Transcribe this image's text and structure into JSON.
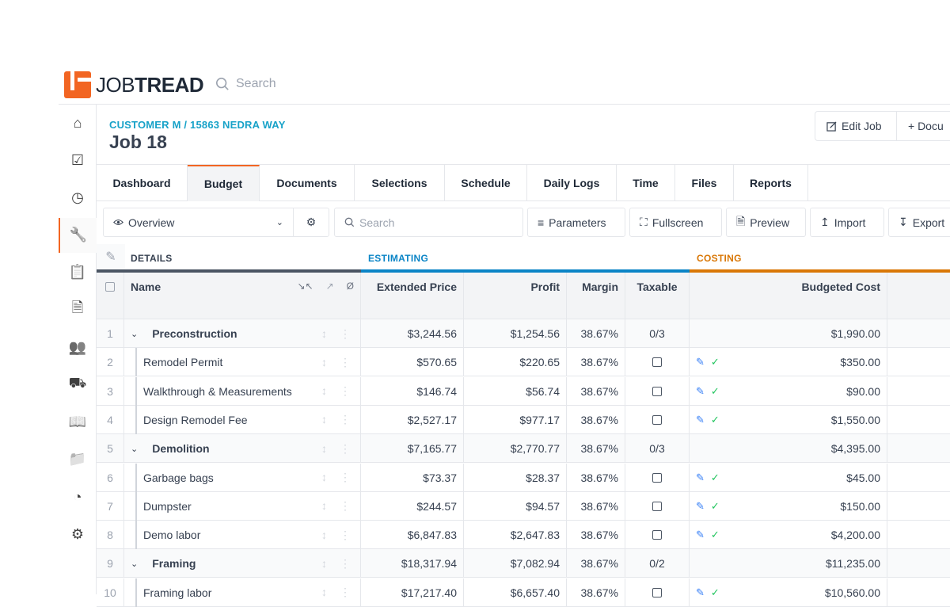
{
  "app": {
    "brand_light": "JOB",
    "brand_bold": "TREAD",
    "search_placeholder": "Search",
    "accent": "#f26522"
  },
  "sidebar": [
    "home-icon",
    "tasks-icon",
    "clock-icon",
    "wrench-icon",
    "clipboard-icon",
    "document-icon",
    "users-icon",
    "truck-icon",
    "book-icon",
    "folder-icon",
    "pie-chart-icon",
    "settings-icon"
  ],
  "header": {
    "breadcrumb": "CUSTOMER M / 15863 NEDRA WAY",
    "title": "Job 18",
    "edit_job": "Edit Job",
    "documents": "+ Docu"
  },
  "tabs": [
    "Dashboard",
    "Budget",
    "Documents",
    "Selections",
    "Schedule",
    "Daily Logs",
    "Time",
    "Files",
    "Reports"
  ],
  "active_tab": "Budget",
  "toolbar": {
    "view": "Overview",
    "search_placeholder": "Search",
    "parameters": "Parameters",
    "fullscreen": "Fullscreen",
    "preview": "Preview",
    "import": "Import",
    "export": "Export"
  },
  "groups": {
    "details": "DETAILS",
    "estimating": "ESTIMATING",
    "costing": "COSTING",
    "colors": {
      "details": "#4b5563",
      "estimating": "#0a84c6",
      "costing": "#d97706"
    }
  },
  "columns": {
    "name": "Name",
    "extended_price": "Extended Price",
    "profit": "Profit",
    "margin": "Margin",
    "taxable": "Taxable",
    "budgeted_cost": "Budgeted Cost"
  },
  "rows": [
    {
      "num": "1",
      "name": "Preconstruction",
      "group": true,
      "price": "$3,244.56",
      "profit": "$1,254.56",
      "margin": "38.67%",
      "taxable": "0/3",
      "cost": "$1,990.00"
    },
    {
      "num": "2",
      "name": "Remodel Permit",
      "group": false,
      "price": "$570.65",
      "profit": "$220.65",
      "margin": "38.67%",
      "taxable": "",
      "cost": "$350.00"
    },
    {
      "num": "3",
      "name": "Walkthrough & Measurements",
      "group": false,
      "price": "$146.74",
      "profit": "$56.74",
      "margin": "38.67%",
      "taxable": "",
      "cost": "$90.00"
    },
    {
      "num": "4",
      "name": "Design Remodel Fee",
      "group": false,
      "price": "$2,527.17",
      "profit": "$977.17",
      "margin": "38.67%",
      "taxable": "",
      "cost": "$1,550.00"
    },
    {
      "num": "5",
      "name": "Demolition",
      "group": true,
      "price": "$7,165.77",
      "profit": "$2,770.77",
      "margin": "38.67%",
      "taxable": "0/3",
      "cost": "$4,395.00"
    },
    {
      "num": "6",
      "name": "Garbage bags",
      "group": false,
      "price": "$73.37",
      "profit": "$28.37",
      "margin": "38.67%",
      "taxable": "",
      "cost": "$45.00"
    },
    {
      "num": "7",
      "name": "Dumpster",
      "group": false,
      "price": "$244.57",
      "profit": "$94.57",
      "margin": "38.67%",
      "taxable": "",
      "cost": "$150.00"
    },
    {
      "num": "8",
      "name": "Demo labor",
      "group": false,
      "price": "$6,847.83",
      "profit": "$2,647.83",
      "margin": "38.67%",
      "taxable": "",
      "cost": "$4,200.00"
    },
    {
      "num": "9",
      "name": "Framing",
      "group": true,
      "price": "$18,317.94",
      "profit": "$7,082.94",
      "margin": "38.67%",
      "taxable": "0/2",
      "cost": "$11,235.00"
    },
    {
      "num": "10",
      "name": "Framing labor",
      "group": false,
      "price": "$17,217.40",
      "profit": "$6,657.40",
      "margin": "38.67%",
      "taxable": "",
      "cost": "$10,560.00"
    }
  ]
}
